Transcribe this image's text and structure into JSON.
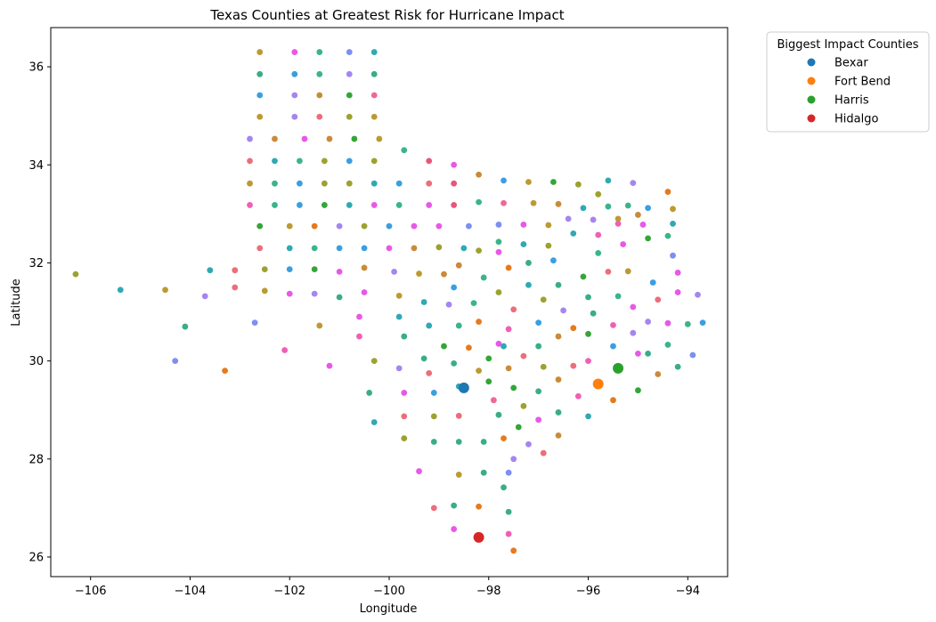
{
  "chart_data": {
    "type": "scatter",
    "title": "Texas Counties at Greatest Risk for Hurricane Impact",
    "xlabel": "Longitude",
    "ylabel": "Latitude",
    "xlim": [
      -106.8,
      -93.2
    ],
    "ylim": [
      25.6,
      36.8
    ],
    "xticks": [
      -106,
      -104,
      -102,
      -100,
      -98,
      -96,
      -94
    ],
    "yticks": [
      26,
      28,
      30,
      32,
      34,
      36
    ],
    "xtick_labels": [
      "−106",
      "−104",
      "−102",
      "−100",
      "−98",
      "−96",
      "−94"
    ],
    "ytick_labels": [
      "26",
      "28",
      "30",
      "32",
      "34",
      "36"
    ],
    "grid": false,
    "legend_title": "Biggest Impact Counties",
    "legend_position": "outside-top-right",
    "highlight_series": [
      {
        "name": "Bexar",
        "color": "#1f77b4",
        "x": -98.5,
        "y": 29.45
      },
      {
        "name": "Fort Bend",
        "color": "#ff7f0e",
        "x": -95.8,
        "y": 29.53
      },
      {
        "name": "Harris",
        "color": "#2ca02c",
        "x": -95.4,
        "y": 29.85
      },
      {
        "name": "Hidalgo",
        "color": "#d62728",
        "x": -98.2,
        "y": 26.4
      }
    ],
    "county_points": [
      [
        -102.6,
        36.3,
        "#bd9a31"
      ],
      [
        -101.9,
        36.3,
        "#e858e8"
      ],
      [
        -101.4,
        36.3,
        "#3ab589"
      ],
      [
        -100.8,
        36.3,
        "#7c8ff2"
      ],
      [
        -100.3,
        36.3,
        "#2fa9b3"
      ],
      [
        -102.6,
        35.85,
        "#39ad88"
      ],
      [
        -101.9,
        35.85,
        "#3a9fe0"
      ],
      [
        -101.4,
        35.85,
        "#3ab589"
      ],
      [
        -100.8,
        35.85,
        "#a585f0"
      ],
      [
        -100.3,
        35.85,
        "#39ad88"
      ],
      [
        -102.6,
        35.42,
        "#3a9fe0"
      ],
      [
        -101.9,
        35.42,
        "#a585f0"
      ],
      [
        -101.4,
        35.42,
        "#c98b3a"
      ],
      [
        -100.8,
        35.42,
        "#33a637"
      ],
      [
        -100.3,
        35.42,
        "#f0679a"
      ],
      [
        -102.6,
        34.98,
        "#bd9a31"
      ],
      [
        -101.9,
        34.98,
        "#a585f0"
      ],
      [
        -101.4,
        34.98,
        "#ec6e7a"
      ],
      [
        -100.8,
        34.98,
        "#9ea12f"
      ],
      [
        -100.3,
        34.98,
        "#bd9a31"
      ],
      [
        -102.8,
        34.53,
        "#a585f0"
      ],
      [
        -102.3,
        34.53,
        "#c98b3a"
      ],
      [
        -101.7,
        34.53,
        "#e858e8"
      ],
      [
        -101.2,
        34.53,
        "#c98b3a"
      ],
      [
        -100.7,
        34.53,
        "#33a637"
      ],
      [
        -100.2,
        34.53,
        "#bd9a31"
      ],
      [
        -102.8,
        34.08,
        "#ec6e7a"
      ],
      [
        -102.3,
        34.08,
        "#2fa9b3"
      ],
      [
        -101.8,
        34.08,
        "#3ab589"
      ],
      [
        -101.3,
        34.08,
        "#9ea12f"
      ],
      [
        -100.8,
        34.08,
        "#3a9fe0"
      ],
      [
        -100.3,
        34.08,
        "#9ea12f"
      ],
      [
        -99.7,
        34.3,
        "#3ab589"
      ],
      [
        -99.2,
        34.08,
        "#e8567a"
      ],
      [
        -98.7,
        34.0,
        "#e858e8"
      ],
      [
        -102.8,
        33.62,
        "#bd9a31"
      ],
      [
        -102.3,
        33.62,
        "#3ab589"
      ],
      [
        -101.8,
        33.62,
        "#3a9fe0"
      ],
      [
        -101.3,
        33.62,
        "#9ea12f"
      ],
      [
        -100.8,
        33.62,
        "#9ea12f"
      ],
      [
        -100.3,
        33.62,
        "#2fa9b3"
      ],
      [
        -99.8,
        33.62,
        "#3a9fe0"
      ],
      [
        -99.2,
        33.62,
        "#ec6e7a"
      ],
      [
        -98.7,
        33.62,
        "#e8567a"
      ],
      [
        -98.2,
        33.8,
        "#c98b3a"
      ],
      [
        -97.7,
        33.68,
        "#3a9fe0"
      ],
      [
        -97.2,
        33.65,
        "#bd9a31"
      ],
      [
        -96.7,
        33.65,
        "#33a637"
      ],
      [
        -96.2,
        33.6,
        "#9ea12f"
      ],
      [
        -95.6,
        33.68,
        "#2fa9b3"
      ],
      [
        -95.1,
        33.63,
        "#a585f0"
      ],
      [
        -94.4,
        33.45,
        "#e57a1e"
      ],
      [
        -102.8,
        33.18,
        "#f05fb5"
      ],
      [
        -102.3,
        33.18,
        "#3ab589"
      ],
      [
        -101.8,
        33.18,
        "#3a9fe0"
      ],
      [
        -101.3,
        33.18,
        "#33a637"
      ],
      [
        -100.8,
        33.18,
        "#2fa9b3"
      ],
      [
        -100.3,
        33.18,
        "#e858e8"
      ],
      [
        -99.8,
        33.18,
        "#3ab589"
      ],
      [
        -99.2,
        33.18,
        "#e858e8"
      ],
      [
        -98.7,
        33.18,
        "#e8567a"
      ],
      [
        -98.2,
        33.24,
        "#3ab589"
      ],
      [
        -97.7,
        33.22,
        "#f0679a"
      ],
      [
        -97.1,
        33.22,
        "#bd9a31"
      ],
      [
        -96.6,
        33.2,
        "#c98b3a"
      ],
      [
        -96.1,
        33.12,
        "#2fa9b3"
      ],
      [
        -95.8,
        33.4,
        "#9ea12f"
      ],
      [
        -95.6,
        33.15,
        "#3ab589"
      ],
      [
        -95.2,
        33.17,
        "#3ab589"
      ],
      [
        -94.8,
        33.12,
        "#3a9fe0"
      ],
      [
        -94.3,
        33.1,
        "#bd9a31"
      ],
      [
        -102.6,
        32.75,
        "#33a637"
      ],
      [
        -102.0,
        32.75,
        "#bd9a31"
      ],
      [
        -101.5,
        32.75,
        "#e57a1e"
      ],
      [
        -101.0,
        32.75,
        "#a585f0"
      ],
      [
        -100.5,
        32.75,
        "#9ea12f"
      ],
      [
        -100.0,
        32.75,
        "#3a9fe0"
      ],
      [
        -99.5,
        32.75,
        "#e858e8"
      ],
      [
        -99.0,
        32.75,
        "#e858e8"
      ],
      [
        -98.4,
        32.75,
        "#7c8ff2"
      ],
      [
        -97.8,
        32.78,
        "#7c8ff2"
      ],
      [
        -97.3,
        32.78,
        "#e858e8"
      ],
      [
        -96.8,
        32.77,
        "#bd9a31"
      ],
      [
        -96.4,
        32.9,
        "#a585f0"
      ],
      [
        -95.9,
        32.88,
        "#a585f0"
      ],
      [
        -95.4,
        32.9,
        "#bd9a31"
      ],
      [
        -95.0,
        32.98,
        "#c98b3a"
      ],
      [
        -94.3,
        32.8,
        "#2fa9b3"
      ],
      [
        -102.6,
        32.3,
        "#ec6e7a"
      ],
      [
        -102.0,
        32.3,
        "#2fa9b3"
      ],
      [
        -101.5,
        32.3,
        "#3ab589"
      ],
      [
        -101.0,
        32.3,
        "#3a9fe0"
      ],
      [
        -100.5,
        32.3,
        "#3a9fe0"
      ],
      [
        -100.0,
        32.3,
        "#e858e8"
      ],
      [
        -99.5,
        32.3,
        "#c98b3a"
      ],
      [
        -99.0,
        32.32,
        "#9ea12f"
      ],
      [
        -98.5,
        32.3,
        "#2fa9b3"
      ],
      [
        -97.8,
        32.43,
        "#3ab589"
      ],
      [
        -97.8,
        32.22,
        "#e858e8"
      ],
      [
        -97.3,
        32.38,
        "#2fa9b3"
      ],
      [
        -96.8,
        32.35,
        "#9ea12f"
      ],
      [
        -96.3,
        32.6,
        "#2fa9b3"
      ],
      [
        -95.8,
        32.57,
        "#f05fb5"
      ],
      [
        -95.4,
        32.8,
        "#f05fb5"
      ],
      [
        -95.3,
        32.38,
        "#e858e8"
      ],
      [
        -94.8,
        32.5,
        "#33a637"
      ],
      [
        -94.4,
        32.55,
        "#3ab589"
      ],
      [
        -94.9,
        32.78,
        "#e858e8"
      ],
      [
        -106.3,
        31.77,
        "#9ea12f"
      ],
      [
        -105.4,
        31.45,
        "#2fa9b3"
      ],
      [
        -104.5,
        31.45,
        "#bd9a31"
      ],
      [
        -103.7,
        31.32,
        "#a585f0"
      ],
      [
        -103.6,
        31.85,
        "#2fa9b3"
      ],
      [
        -103.1,
        31.85,
        "#ec6e7a"
      ],
      [
        -103.1,
        31.5,
        "#ec6e7a"
      ],
      [
        -102.5,
        31.87,
        "#9ea12f"
      ],
      [
        -102.5,
        31.43,
        "#bd9a31"
      ],
      [
        -102.0,
        31.87,
        "#3a9fe0"
      ],
      [
        -102.0,
        31.37,
        "#e858e8"
      ],
      [
        -101.5,
        31.87,
        "#33a637"
      ],
      [
        -101.5,
        31.37,
        "#a585f0"
      ],
      [
        -101.0,
        31.82,
        "#e858e8"
      ],
      [
        -101.0,
        31.3,
        "#39ad88"
      ],
      [
        -100.5,
        31.9,
        "#c98b3a"
      ],
      [
        -100.5,
        31.4,
        "#e858e8"
      ],
      [
        -99.9,
        31.82,
        "#a585f0"
      ],
      [
        -99.8,
        31.33,
        "#bd9a31"
      ],
      [
        -99.4,
        31.78,
        "#bd9a31"
      ],
      [
        -98.9,
        31.77,
        "#c98b3a"
      ],
      [
        -98.6,
        31.95,
        "#c98b3a"
      ],
      [
        -98.2,
        32.25,
        "#9ea12f"
      ],
      [
        -98.1,
        31.7,
        "#3ab589"
      ],
      [
        -97.6,
        31.9,
        "#e57a1e"
      ],
      [
        -97.2,
        32.0,
        "#39ad88"
      ],
      [
        -96.7,
        32.05,
        "#3a9fe0"
      ],
      [
        -96.1,
        31.72,
        "#33a637"
      ],
      [
        -95.8,
        32.2,
        "#3ab589"
      ],
      [
        -95.6,
        31.82,
        "#ec6e7a"
      ],
      [
        -95.2,
        31.83,
        "#bd9a31"
      ],
      [
        -94.7,
        31.6,
        "#3a9fe0"
      ],
      [
        -94.2,
        31.8,
        "#e858e8"
      ],
      [
        -94.3,
        32.15,
        "#7c8ff2"
      ],
      [
        -99.3,
        31.2,
        "#2fa9b3"
      ],
      [
        -98.7,
        31.5,
        "#3a9fe0"
      ],
      [
        -98.3,
        31.18,
        "#3ab589"
      ],
      [
        -97.8,
        31.4,
        "#9ea12f"
      ],
      [
        -97.5,
        31.05,
        "#ec6e7a"
      ],
      [
        -97.2,
        31.55,
        "#2fa9b3"
      ],
      [
        -96.9,
        31.25,
        "#9ea12f"
      ],
      [
        -96.6,
        31.55,
        "#39ad88"
      ],
      [
        -96.5,
        31.03,
        "#a585f0"
      ],
      [
        -96.0,
        31.3,
        "#39ad88"
      ],
      [
        -95.9,
        30.97,
        "#39ad88"
      ],
      [
        -95.4,
        31.32,
        "#3ab589"
      ],
      [
        -95.1,
        31.1,
        "#e858e8"
      ],
      [
        -94.6,
        31.25,
        "#ec6e7a"
      ],
      [
        -94.2,
        31.4,
        "#e858e8"
      ],
      [
        -93.8,
        31.35,
        "#a585f0"
      ],
      [
        -102.7,
        30.78,
        "#7c8ff2"
      ],
      [
        -101.4,
        30.72,
        "#bd9a31"
      ],
      [
        -100.6,
        30.9,
        "#e858e8"
      ],
      [
        -99.8,
        30.9,
        "#2fa9b3"
      ],
      [
        -99.2,
        30.72,
        "#2fa9b3"
      ],
      [
        -98.8,
        31.15,
        "#a585f0"
      ],
      [
        -98.6,
        30.72,
        "#3ab589"
      ],
      [
        -98.2,
        30.8,
        "#e57a1e"
      ],
      [
        -97.8,
        30.35,
        "#e858e8"
      ],
      [
        -97.6,
        30.65,
        "#f05fb5"
      ],
      [
        -97.0,
        30.78,
        "#3a9fe0"
      ],
      [
        -96.6,
        30.5,
        "#c98b3a"
      ],
      [
        -96.3,
        30.67,
        "#e57a1e"
      ],
      [
        -96.0,
        30.55,
        "#33a637"
      ],
      [
        -95.5,
        30.73,
        "#f05fb5"
      ],
      [
        -95.5,
        30.3,
        "#3a9fe0"
      ],
      [
        -95.1,
        30.57,
        "#a585f0"
      ],
      [
        -94.8,
        30.8,
        "#a585f0"
      ],
      [
        -94.4,
        30.77,
        "#e858e8"
      ],
      [
        -94.4,
        30.33,
        "#3ab589"
      ],
      [
        -94.0,
        30.75,
        "#3ab589"
      ],
      [
        -93.7,
        30.78,
        "#3a9fe0"
      ],
      [
        -93.9,
        30.12,
        "#7c8ff2"
      ],
      [
        -104.1,
        30.7,
        "#39ad88"
      ],
      [
        -104.3,
        30.0,
        "#7c8ff2"
      ],
      [
        -103.3,
        29.8,
        "#e57a1e"
      ],
      [
        -102.1,
        30.22,
        "#f05fb5"
      ],
      [
        -101.2,
        29.9,
        "#e858e8"
      ],
      [
        -100.6,
        30.5,
        "#f05fb5"
      ],
      [
        -100.3,
        30.0,
        "#9ea12f"
      ],
      [
        -99.7,
        30.5,
        "#39ad88"
      ],
      [
        -99.8,
        29.85,
        "#a585f0"
      ],
      [
        -99.3,
        30.05,
        "#39ad88"
      ],
      [
        -98.9,
        30.3,
        "#33a637"
      ],
      [
        -98.7,
        29.95,
        "#39ad88"
      ],
      [
        -98.4,
        30.27,
        "#e57a1e"
      ],
      [
        -98.2,
        29.8,
        "#bd9a31"
      ],
      [
        -98.0,
        30.05,
        "#33a637"
      ],
      [
        -97.7,
        30.3,
        "#2fa9b3"
      ],
      [
        -97.6,
        29.85,
        "#c98b3a"
      ],
      [
        -97.3,
        30.1,
        "#ec6e7a"
      ],
      [
        -97.0,
        30.3,
        "#39ad88"
      ],
      [
        -96.9,
        29.88,
        "#9ea12f"
      ],
      [
        -96.6,
        29.62,
        "#c98b3a"
      ],
      [
        -96.3,
        29.9,
        "#ec6e7a"
      ],
      [
        -96.0,
        30.0,
        "#f05fb5"
      ],
      [
        -95.0,
        30.15,
        "#e858e8"
      ],
      [
        -94.8,
        30.15,
        "#39ad88"
      ],
      [
        -94.6,
        29.73,
        "#c98b3a"
      ],
      [
        -94.2,
        29.88,
        "#39ad88"
      ],
      [
        -100.4,
        29.35,
        "#39ad88"
      ],
      [
        -99.7,
        29.35,
        "#e858e8"
      ],
      [
        -99.2,
        29.75,
        "#ec6e7a"
      ],
      [
        -99.1,
        29.35,
        "#3a9fe0"
      ],
      [
        -98.6,
        29.48,
        "#2fa9b3"
      ],
      [
        -98.0,
        29.58,
        "#33a637"
      ],
      [
        -97.9,
        29.2,
        "#f0679a"
      ],
      [
        -97.5,
        29.45,
        "#33a637"
      ],
      [
        -97.0,
        29.38,
        "#39ad88"
      ],
      [
        -97.3,
        29.08,
        "#9ea12f"
      ],
      [
        -96.6,
        28.95,
        "#39ad88"
      ],
      [
        -96.2,
        29.28,
        "#f05fb5"
      ],
      [
        -95.5,
        29.2,
        "#e57a1e"
      ],
      [
        -95.0,
        29.4,
        "#33a637"
      ],
      [
        -100.3,
        28.75,
        "#2fa9b3"
      ],
      [
        -99.7,
        28.87,
        "#ec6e7a"
      ],
      [
        -99.1,
        28.87,
        "#9ea12f"
      ],
      [
        -98.6,
        28.88,
        "#ec6e7a"
      ],
      [
        -97.8,
        28.9,
        "#39ad88"
      ],
      [
        -97.4,
        28.65,
        "#33a637"
      ],
      [
        -97.0,
        28.8,
        "#e858e8"
      ],
      [
        -96.0,
        28.87,
        "#2fa9b3"
      ],
      [
        -99.7,
        28.42,
        "#9ea12f"
      ],
      [
        -99.1,
        28.35,
        "#39ad88"
      ],
      [
        -98.6,
        28.35,
        "#39ad88"
      ],
      [
        -98.1,
        28.35,
        "#39ad88"
      ],
      [
        -97.7,
        28.42,
        "#e57a1e"
      ],
      [
        -97.2,
        28.3,
        "#a585f0"
      ],
      [
        -96.9,
        28.12,
        "#ec6e7a"
      ],
      [
        -96.6,
        28.48,
        "#c98b3a"
      ],
      [
        -97.5,
        28.0,
        "#a585f0"
      ],
      [
        -99.4,
        27.75,
        "#e858e8"
      ],
      [
        -98.6,
        27.68,
        "#bd9a31"
      ],
      [
        -98.1,
        27.72,
        "#39ad88"
      ],
      [
        -97.6,
        27.72,
        "#7c8ff2"
      ],
      [
        -97.7,
        27.42,
        "#39ad88"
      ],
      [
        -99.1,
        27.0,
        "#ec6e7a"
      ],
      [
        -98.7,
        27.05,
        "#39ad88"
      ],
      [
        -98.2,
        27.03,
        "#e57a1e"
      ],
      [
        -97.6,
        26.92,
        "#39ad88"
      ],
      [
        -98.7,
        26.57,
        "#e858e8"
      ],
      [
        -97.6,
        26.47,
        "#f05fb5"
      ],
      [
        -97.5,
        26.13,
        "#e57a1e"
      ]
    ]
  }
}
